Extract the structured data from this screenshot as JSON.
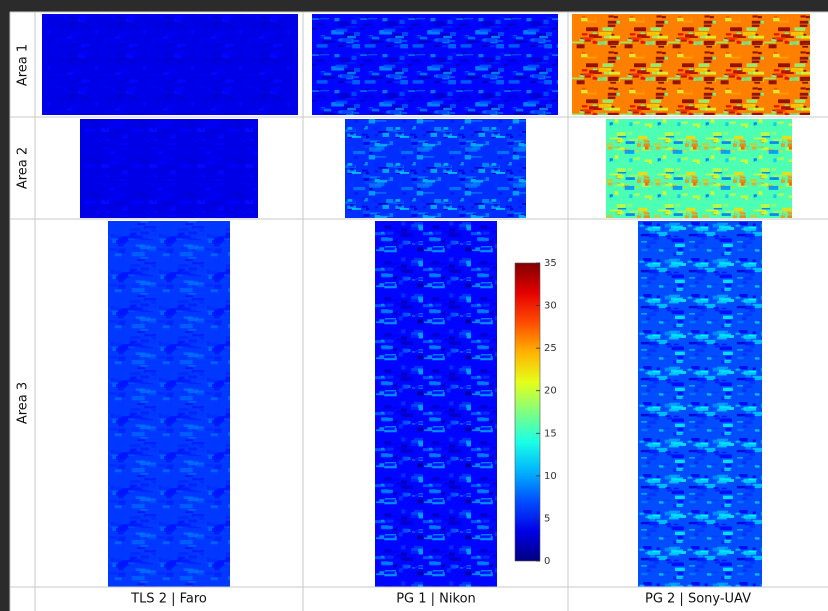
{
  "rows": [
    "Area 1",
    "Area 2",
    "Area 3"
  ],
  "columns": [
    "TLS 2 | Faro",
    "PG 1 | Nikon",
    "PG 2 | Sony-UAV"
  ],
  "colorbar": {
    "lim": [
      0,
      35
    ],
    "ticks": [
      0,
      5,
      10,
      15,
      20,
      25,
      30,
      35
    ]
  }
}
